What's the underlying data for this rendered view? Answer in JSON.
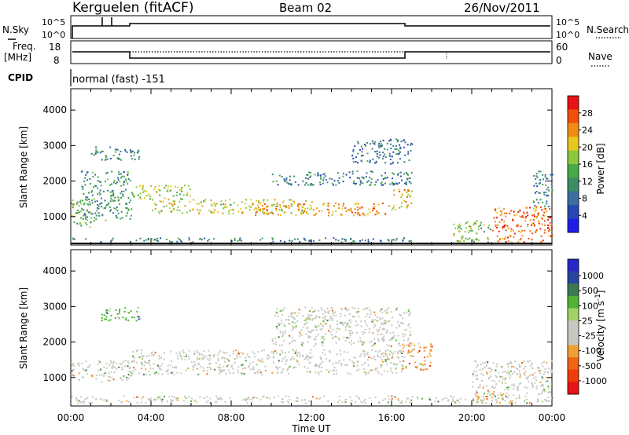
{
  "header": {
    "title": "Kerguelen (fitACF)",
    "beam": "Beam 02",
    "date": "26/Nov/2011"
  },
  "noise_panel": {
    "left_label": "N.Sky",
    "right_label": "N.Search",
    "left_ticks": [
      "10^5",
      "10^0"
    ],
    "right_ticks": [
      "10^5",
      "10^0"
    ]
  },
  "freq_panel": {
    "left_label_line1": "Freq.",
    "left_label_line2": "[MHz]",
    "left_ticks": [
      "18",
      "8"
    ],
    "right_ticks": [
      "60",
      "0"
    ],
    "right_label": "Nave"
  },
  "cpid": {
    "label": "CPID",
    "value": "normal (fast) -151"
  },
  "colors": {
    "power_scale": [
      "#1e1ee6",
      "#2846b4",
      "#3c6ea0",
      "#3c8c64",
      "#46aa46",
      "#8cc83c",
      "#e6c81e",
      "#f08c14",
      "#f0500a",
      "#e61414"
    ],
    "velocity_scale": [
      "#2828c8",
      "#2846a0",
      "#3c7850",
      "#50b432",
      "#a0d264",
      "#c8c8c0",
      "#c8c8c0",
      "#f0a032",
      "#f06414",
      "#f03c0a",
      "#e61414"
    ]
  },
  "chart_data": [
    {
      "type": "heatmap",
      "name": "power-panel",
      "ylabel": "Slant Range [km]",
      "yticks": [
        "1000",
        "2000",
        "3000",
        "4000"
      ],
      "ylim": [
        200,
        4600
      ],
      "xlim": [
        0,
        24
      ],
      "colorbar_label": "Power [dB]",
      "colorbar_ticks": [
        "4",
        "8",
        "12",
        "16",
        "20",
        "24",
        "28"
      ],
      "colorbar_range": [
        0,
        32
      ],
      "features": [
        {
          "t0": 0.0,
          "t1": 17.0,
          "r0": 300,
          "r1": 420,
          "level": 8
        },
        {
          "t0": 0.0,
          "t1": 1.0,
          "r0": 700,
          "r1": 1500,
          "level": 14
        },
        {
          "t0": 0.5,
          "t1": 3.0,
          "r0": 900,
          "r1": 2300,
          "level": 10
        },
        {
          "t0": 1.0,
          "t1": 3.5,
          "r0": 2600,
          "r1": 3000,
          "level": 9
        },
        {
          "t0": 3.0,
          "t1": 6.0,
          "r0": 1500,
          "r1": 1900,
          "level": 16
        },
        {
          "t0": 4.0,
          "t1": 12.0,
          "r0": 1100,
          "r1": 1500,
          "level": 18
        },
        {
          "t0": 9.0,
          "t1": 16.0,
          "r0": 1050,
          "r1": 1400,
          "level": 22
        },
        {
          "t0": 16.0,
          "t1": 17.0,
          "r0": 1200,
          "r1": 1800,
          "level": 20
        },
        {
          "t0": 10.0,
          "t1": 17.0,
          "r0": 1900,
          "r1": 2300,
          "level": 8
        },
        {
          "t0": 14.0,
          "t1": 17.0,
          "r0": 2500,
          "r1": 3200,
          "level": 7
        },
        {
          "t0": 19.0,
          "t1": 21.0,
          "r0": 300,
          "r1": 900,
          "level": 14
        },
        {
          "t0": 21.0,
          "t1": 24.0,
          "r0": 300,
          "r1": 1300,
          "level": 24
        },
        {
          "t0": 23.0,
          "t1": 24.0,
          "r0": 1300,
          "r1": 2300,
          "level": 9
        }
      ]
    },
    {
      "type": "heatmap",
      "name": "velocity-panel",
      "ylabel": "Slant Range [km]",
      "yticks": [
        "1000",
        "2000",
        "3000",
        "4000"
      ],
      "ylim": [
        200,
        4600
      ],
      "xlim": [
        0,
        24
      ],
      "xticks": [
        "00:00",
        "04:00",
        "08:00",
        "12:00",
        "16:00",
        "20:00",
        "00:00"
      ],
      "xlabel": "Time UT",
      "colorbar_label": "Velocity [m s^-1]",
      "colorbar_ticks": [
        "1000",
        "500",
        "100",
        "25",
        "-25",
        "-100",
        "-500",
        "-1000"
      ],
      "features": [
        {
          "t0": 0.0,
          "t1": 3.0,
          "r0": 900,
          "r1": 1500,
          "level": 5
        },
        {
          "t0": 3.0,
          "t1": 16.5,
          "r0": 1100,
          "r1": 1800,
          "level": 5
        },
        {
          "t0": 16.5,
          "t1": 18.0,
          "r0": 1200,
          "r1": 2000,
          "level": 7
        },
        {
          "t0": 1.5,
          "t1": 3.5,
          "r0": 2600,
          "r1": 3000,
          "level": 3
        },
        {
          "t0": 10.0,
          "t1": 17.0,
          "r0": 1900,
          "r1": 3000,
          "level": 5
        },
        {
          "t0": 20.0,
          "t1": 24.0,
          "r0": 500,
          "r1": 1500,
          "level": 5
        },
        {
          "t0": 20.0,
          "t1": 22.0,
          "r0": 300,
          "r1": 600,
          "level": 7
        },
        {
          "t0": 0.0,
          "t1": 24.0,
          "r0": 300,
          "r1": 500,
          "level": 5
        }
      ]
    }
  ]
}
